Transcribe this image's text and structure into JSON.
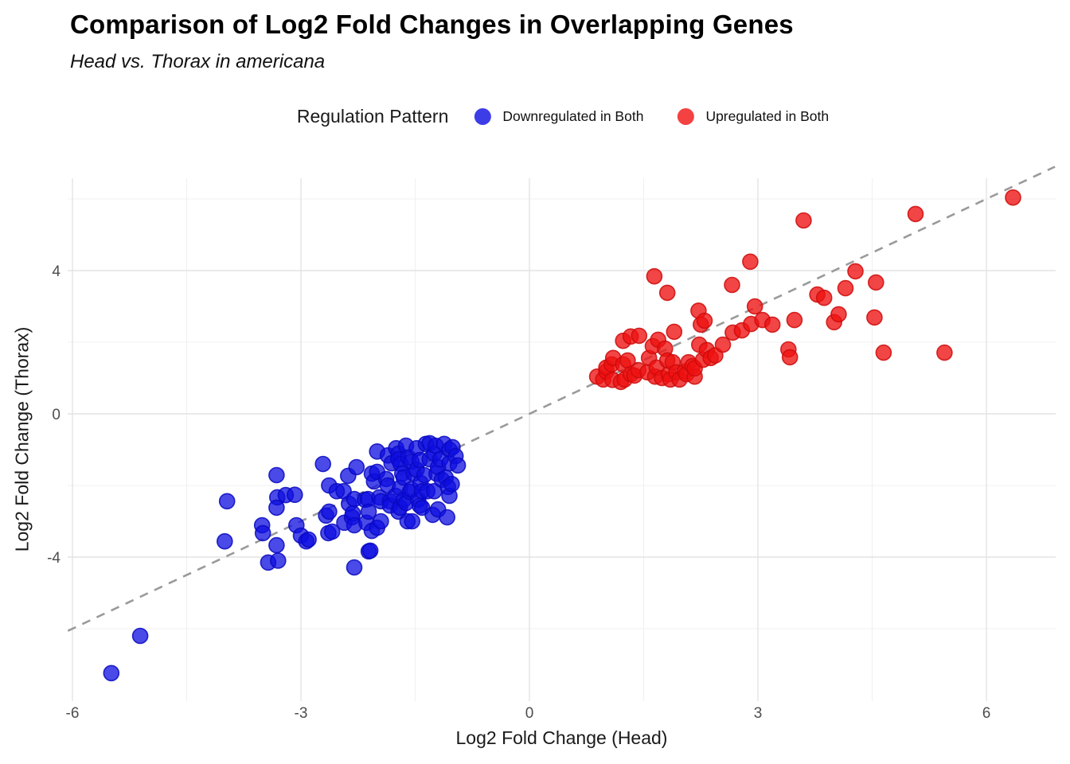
{
  "header": {
    "title": "Comparison of Log2 Fold Changes in Overlapping Genes",
    "subtitle": "Head vs. Thorax in americana"
  },
  "legend": {
    "title": "Regulation Pattern",
    "position": "top"
  },
  "chart_data": {
    "type": "scatter",
    "title": "Comparison of Log2 Fold Changes in Overlapping Genes",
    "subtitle": "Head vs. Thorax in americana",
    "xlabel": "Log2 Fold Change (Head)",
    "ylabel": "Log2 Fold Change (Thorax)",
    "xlim": [
      -6.06,
      6.9
    ],
    "ylim": [
      -8.0,
      6.58
    ],
    "x_ticks": [
      -6,
      -3,
      0,
      3,
      6
    ],
    "y_ticks": [
      -4,
      0,
      4
    ],
    "x_minor_ticks": [
      -4.5,
      -1.5,
      1.5,
      4.5
    ],
    "y_minor_ticks": [
      -6,
      -2,
      2,
      6
    ],
    "grid": true,
    "grid_major_color": "#e3e3e3",
    "grid_minor_color": "#f0f0f0",
    "tick_label_color": "#4d4d4d",
    "background": "#ffffff",
    "point_radius": 9.5,
    "reference_line": {
      "equation": "y = x",
      "style": "dashed",
      "color": "#9a9a9a"
    },
    "series": [
      {
        "name": "Downregulated in Both",
        "legend_color": "#3d3de8",
        "style": {
          "fill": "#0d0de0",
          "fill_opacity": 0.75,
          "stroke": "#0808c0",
          "stroke_opacity": 0.85
        },
        "points": [
          [
            -5.49,
            -7.24
          ],
          [
            -5.11,
            -6.2
          ],
          [
            -4.0,
            -3.56
          ],
          [
            -3.97,
            -2.44
          ],
          [
            -3.51,
            -3.11
          ],
          [
            -3.5,
            -3.33
          ],
          [
            -3.43,
            -4.15
          ],
          [
            -3.3,
            -4.1
          ],
          [
            -3.32,
            -1.71
          ],
          [
            -3.31,
            -2.33
          ],
          [
            -3.32,
            -2.62
          ],
          [
            -3.2,
            -2.27
          ],
          [
            -3.32,
            -3.67
          ],
          [
            -3.08,
            -2.26
          ],
          [
            -3.06,
            -3.11
          ],
          [
            -3.0,
            -3.4
          ],
          [
            -2.93,
            -3.56
          ],
          [
            -2.9,
            -3.51
          ],
          [
            -2.71,
            -1.4
          ],
          [
            -2.67,
            -2.84
          ],
          [
            -2.64,
            -3.33
          ],
          [
            -2.63,
            -2.0
          ],
          [
            -2.63,
            -2.73
          ],
          [
            -2.59,
            -3.29
          ],
          [
            -2.53,
            -2.16
          ],
          [
            -2.44,
            -2.16
          ],
          [
            -2.43,
            -3.04
          ],
          [
            -2.38,
            -1.73
          ],
          [
            -2.37,
            -2.51
          ],
          [
            -2.33,
            -2.89
          ],
          [
            -2.32,
            -2.78
          ],
          [
            -2.3,
            -2.38
          ],
          [
            -2.3,
            -3.11
          ],
          [
            -2.3,
            -4.29
          ],
          [
            -2.27,
            -1.49
          ],
          [
            -2.16,
            -2.4
          ],
          [
            -2.14,
            -3.04
          ],
          [
            -2.12,
            -2.38
          ],
          [
            -2.11,
            -2.73
          ],
          [
            -2.11,
            -3.84
          ],
          [
            -2.09,
            -3.82
          ],
          [
            -2.07,
            -1.67
          ],
          [
            -2.07,
            -3.27
          ],
          [
            -2.04,
            -1.89
          ],
          [
            -2.0,
            -1.05
          ],
          [
            -2.0,
            -1.62
          ],
          [
            -2.0,
            -3.18
          ],
          [
            -1.97,
            -2.33
          ],
          [
            -1.95,
            -2.44
          ],
          [
            -1.95,
            -3.0
          ],
          [
            -1.88,
            -1.82
          ],
          [
            -1.86,
            -1.16
          ],
          [
            -1.86,
            -2.0
          ],
          [
            -1.83,
            -2.44
          ],
          [
            -1.83,
            -2.56
          ],
          [
            -1.81,
            -1.38
          ],
          [
            -1.76,
            -2.29
          ],
          [
            -1.75,
            -0.96
          ],
          [
            -1.72,
            -1.11
          ],
          [
            -1.72,
            -1.27
          ],
          [
            -1.72,
            -2.73
          ],
          [
            -1.7,
            -2.07
          ],
          [
            -1.7,
            -2.62
          ],
          [
            -1.69,
            -1.4
          ],
          [
            -1.67,
            -1.67
          ],
          [
            -1.65,
            -1.78
          ],
          [
            -1.65,
            -2.4
          ],
          [
            -1.62,
            -0.89
          ],
          [
            -1.62,
            -2.49
          ],
          [
            -1.6,
            -3.0
          ],
          [
            -1.59,
            -1.22
          ],
          [
            -1.57,
            -2.18
          ],
          [
            -1.55,
            -1.33
          ],
          [
            -1.55,
            -2.11
          ],
          [
            -1.54,
            -3.0
          ],
          [
            -1.52,
            -1.67
          ],
          [
            -1.48,
            -0.96
          ],
          [
            -1.48,
            -1.56
          ],
          [
            -1.46,
            -2.4
          ],
          [
            -1.44,
            -1.29
          ],
          [
            -1.44,
            -2.56
          ],
          [
            -1.43,
            -1.93
          ],
          [
            -1.41,
            -2.16
          ],
          [
            -1.41,
            -2.62
          ],
          [
            -1.38,
            -1.71
          ],
          [
            -1.36,
            -0.84
          ],
          [
            -1.34,
            -2.16
          ],
          [
            -1.31,
            -0.82
          ],
          [
            -1.31,
            -1.27
          ],
          [
            -1.27,
            -2.82
          ],
          [
            -1.25,
            -1.11
          ],
          [
            -1.25,
            -2.16
          ],
          [
            -1.23,
            -0.89
          ],
          [
            -1.22,
            -1.67
          ],
          [
            -1.2,
            -1.49
          ],
          [
            -1.2,
            -2.67
          ],
          [
            -1.17,
            -1.27
          ],
          [
            -1.15,
            -1.84
          ],
          [
            -1.12,
            -0.84
          ],
          [
            -1.1,
            -1.78
          ],
          [
            -1.08,
            -2.89
          ],
          [
            -1.07,
            -2.04
          ],
          [
            -1.05,
            -1.0
          ],
          [
            -1.05,
            -1.38
          ],
          [
            -1.05,
            -2.29
          ],
          [
            -1.02,
            -1.96
          ],
          [
            -1.01,
            -0.93
          ],
          [
            -0.97,
            -1.18
          ],
          [
            -0.94,
            -1.44
          ]
        ]
      },
      {
        "name": "Upregulated in Both",
        "legend_color": "#f44141",
        "style": {
          "fill": "#ee1111",
          "fill_opacity": 0.78,
          "stroke": "#cc0a0a",
          "stroke_opacity": 0.85
        },
        "points": [
          [
            0.89,
            1.04
          ],
          [
            0.97,
            0.96
          ],
          [
            1.01,
            1.18
          ],
          [
            1.01,
            1.29
          ],
          [
            1.08,
            1.38
          ],
          [
            1.09,
            0.95
          ],
          [
            1.1,
            1.56
          ],
          [
            1.2,
            0.89
          ],
          [
            1.23,
            2.04
          ],
          [
            1.23,
            1.38
          ],
          [
            1.25,
            0.96
          ],
          [
            1.29,
            1.49
          ],
          [
            1.33,
            2.16
          ],
          [
            1.33,
            1.11
          ],
          [
            1.38,
            1.07
          ],
          [
            1.43,
            1.22
          ],
          [
            1.44,
            2.18
          ],
          [
            1.55,
            1.16
          ],
          [
            1.57,
            1.56
          ],
          [
            1.62,
            1.89
          ],
          [
            1.64,
            3.84
          ],
          [
            1.65,
            1.04
          ],
          [
            1.67,
            1.29
          ],
          [
            1.69,
            2.07
          ],
          [
            1.74,
            1.0
          ],
          [
            1.78,
            1.82
          ],
          [
            1.81,
            3.38
          ],
          [
            1.81,
            1.49
          ],
          [
            1.83,
            1.11
          ],
          [
            1.85,
            0.96
          ],
          [
            1.88,
            1.44
          ],
          [
            1.9,
            2.29
          ],
          [
            1.93,
            1.16
          ],
          [
            1.97,
            0.96
          ],
          [
            2.04,
            1.18
          ],
          [
            2.06,
            1.11
          ],
          [
            2.09,
            1.44
          ],
          [
            2.14,
            1.33
          ],
          [
            2.17,
            1.04
          ],
          [
            2.17,
            1.27
          ],
          [
            2.22,
            2.88
          ],
          [
            2.23,
            1.93
          ],
          [
            2.25,
            2.49
          ],
          [
            2.3,
            2.6
          ],
          [
            2.28,
            1.51
          ],
          [
            2.33,
            1.78
          ],
          [
            2.38,
            1.56
          ],
          [
            2.44,
            1.63
          ],
          [
            2.54,
            1.93
          ],
          [
            2.66,
            3.6
          ],
          [
            2.67,
            2.27
          ],
          [
            2.79,
            2.33
          ],
          [
            2.9,
            4.25
          ],
          [
            2.91,
            2.51
          ],
          [
            2.96,
            3.0
          ],
          [
            3.06,
            2.62
          ],
          [
            3.19,
            2.49
          ],
          [
            3.4,
            1.8
          ],
          [
            3.42,
            1.58
          ],
          [
            3.48,
            2.62
          ],
          [
            3.6,
            5.4
          ],
          [
            3.78,
            3.33
          ],
          [
            3.87,
            3.24
          ],
          [
            4.0,
            2.56
          ],
          [
            4.06,
            2.78
          ],
          [
            4.15,
            3.51
          ],
          [
            4.28,
            3.98
          ],
          [
            4.53,
            2.69
          ],
          [
            4.55,
            3.67
          ],
          [
            4.65,
            1.71
          ],
          [
            5.07,
            5.58
          ],
          [
            5.45,
            1.71
          ],
          [
            6.35,
            6.04
          ]
        ]
      }
    ]
  }
}
